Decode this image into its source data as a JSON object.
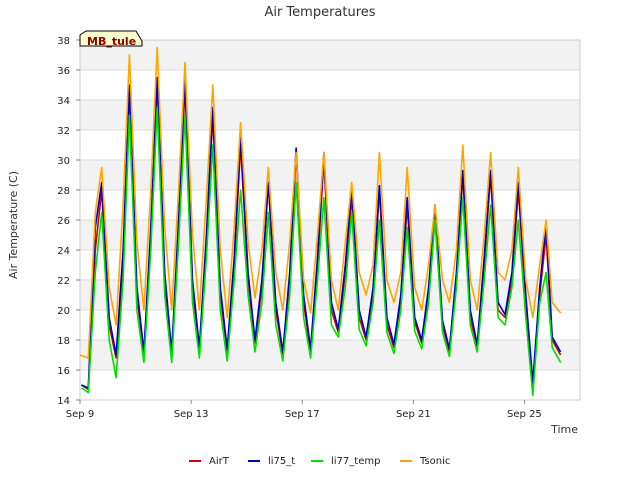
{
  "chart_data": {
    "type": "line",
    "title": "Air Temperatures",
    "xlabel": "Time",
    "ylabel": "Air Temperature (C)",
    "station_tag": "MB_tule",
    "x_unit": "day offset from Sep 9",
    "xlim": [
      0,
      18
    ],
    "ylim": [
      14,
      38
    ],
    "yticks": [
      14,
      16,
      18,
      20,
      22,
      24,
      26,
      28,
      30,
      32,
      34,
      36,
      38
    ],
    "xticks": [
      {
        "label": "Sep 9",
        "x": 0
      },
      {
        "label": "Sep 13",
        "x": 4
      },
      {
        "label": "Sep 17",
        "x": 8
      },
      {
        "label": "Sep 21",
        "x": 12
      },
      {
        "label": "Sep 25",
        "x": 16
      }
    ],
    "background": "alternating grey horizontal bands, light grid",
    "legend_position": "bottom",
    "series": [
      {
        "name": "AirT",
        "color": "#cc0000",
        "x": [
          0.05,
          0.3,
          0.55,
          0.78,
          1.05,
          1.3,
          1.55,
          1.78,
          2.05,
          2.3,
          2.55,
          2.78,
          3.05,
          3.3,
          3.55,
          3.78,
          4.05,
          4.3,
          4.55,
          4.78,
          5.05,
          5.3,
          5.55,
          5.78,
          6.05,
          6.3,
          6.55,
          6.78,
          7.05,
          7.3,
          7.55,
          7.78,
          8.05,
          8.3,
          8.55,
          8.78,
          9.05,
          9.3,
          9.55,
          9.78,
          10.05,
          10.3,
          10.55,
          10.78,
          11.05,
          11.3,
          11.55,
          11.78,
          12.05,
          12.3,
          12.55,
          12.78,
          13.05,
          13.3,
          13.55,
          13.78,
          14.05,
          14.3,
          14.55,
          14.78,
          15.05,
          15.3,
          15.55,
          15.78,
          16.05,
          16.3,
          16.55,
          16.78,
          17.0,
          17.3
        ],
        "y": [
          15.0,
          14.7,
          24.0,
          28.0,
          19.0,
          16.8,
          23.0,
          34.5,
          21.0,
          17.0,
          25.0,
          35.2,
          22.0,
          17.0,
          25.5,
          35.0,
          21.5,
          17.3,
          24.5,
          33.0,
          21.0,
          17.2,
          23.0,
          31.0,
          22.0,
          17.8,
          21.5,
          28.5,
          20.0,
          17.0,
          22.0,
          30.5,
          20.5,
          17.2,
          23.0,
          30.0,
          20.0,
          18.5,
          22.5,
          27.5,
          19.5,
          18.0,
          21.0,
          28.0,
          19.0,
          17.5,
          20.5,
          27.0,
          19.2,
          17.8,
          21.0,
          26.5,
          19.0,
          17.2,
          22.0,
          29.0,
          19.5,
          17.5,
          23.0,
          29.0,
          20.0,
          19.5,
          22.0,
          28.0,
          20.5,
          15.0,
          21.0,
          25.0,
          18.0,
          17.0
        ]
      },
      {
        "name": "li75_t",
        "color": "#0000cc",
        "x": [
          0.05,
          0.3,
          0.55,
          0.78,
          1.05,
          1.3,
          1.55,
          1.78,
          2.05,
          2.3,
          2.55,
          2.78,
          3.05,
          3.3,
          3.55,
          3.78,
          4.05,
          4.3,
          4.55,
          4.78,
          5.05,
          5.3,
          5.55,
          5.78,
          6.05,
          6.3,
          6.55,
          6.78,
          7.05,
          7.3,
          7.55,
          7.78,
          8.05,
          8.3,
          8.55,
          8.78,
          9.05,
          9.3,
          9.55,
          9.78,
          10.05,
          10.3,
          10.55,
          10.78,
          11.05,
          11.3,
          11.55,
          11.78,
          12.05,
          12.3,
          12.55,
          12.78,
          13.05,
          13.3,
          13.55,
          13.78,
          14.05,
          14.3,
          14.55,
          14.78,
          15.05,
          15.3,
          15.55,
          15.78,
          16.05,
          16.3,
          16.55,
          16.78,
          17.0,
          17.3
        ],
        "y": [
          15.0,
          14.8,
          25.5,
          28.5,
          19.5,
          17.0,
          24.0,
          35.0,
          21.5,
          17.2,
          25.5,
          35.5,
          22.5,
          17.2,
          26.0,
          35.5,
          22.0,
          17.5,
          25.0,
          33.5,
          21.5,
          17.4,
          23.5,
          31.5,
          22.5,
          18.0,
          22.0,
          28.5,
          20.5,
          17.2,
          22.5,
          30.8,
          21.0,
          17.4,
          23.5,
          30.5,
          20.5,
          18.7,
          23.0,
          28.2,
          20.0,
          18.2,
          21.5,
          28.3,
          19.5,
          17.7,
          21.0,
          27.5,
          19.5,
          18.0,
          21.5,
          27.0,
          19.3,
          17.4,
          22.5,
          29.3,
          20.0,
          17.7,
          23.5,
          29.3,
          20.5,
          19.7,
          22.5,
          28.5,
          21.0,
          15.2,
          21.5,
          25.8,
          18.2,
          17.2
        ]
      },
      {
        "name": "li77_temp",
        "color": "#00e000",
        "x": [
          0.05,
          0.3,
          0.55,
          0.78,
          1.05,
          1.3,
          1.55,
          1.78,
          2.05,
          2.3,
          2.55,
          2.78,
          3.05,
          3.3,
          3.55,
          3.78,
          4.05,
          4.3,
          4.55,
          4.78,
          5.05,
          5.3,
          5.55,
          5.78,
          6.05,
          6.3,
          6.55,
          6.78,
          7.05,
          7.3,
          7.55,
          7.78,
          8.05,
          8.3,
          8.55,
          8.78,
          9.05,
          9.3,
          9.55,
          9.78,
          10.05,
          10.3,
          10.55,
          10.78,
          11.05,
          11.3,
          11.55,
          11.78,
          12.05,
          12.3,
          12.55,
          12.78,
          13.05,
          13.3,
          13.55,
          13.78,
          14.05,
          14.3,
          14.55,
          14.78,
          15.05,
          15.3,
          15.55,
          15.78,
          16.05,
          16.3,
          16.55,
          16.78,
          17.0,
          17.3
        ],
        "y": [
          14.8,
          14.5,
          22.5,
          26.5,
          18.0,
          15.5,
          22.0,
          33.0,
          20.0,
          16.5,
          24.0,
          33.5,
          21.0,
          16.5,
          24.5,
          33.0,
          20.5,
          16.8,
          23.5,
          31.0,
          20.0,
          16.6,
          22.0,
          28.0,
          21.0,
          17.2,
          20.5,
          26.5,
          19.0,
          16.6,
          21.0,
          28.5,
          19.5,
          16.8,
          22.0,
          27.5,
          19.0,
          18.2,
          21.5,
          26.5,
          18.7,
          17.6,
          20.5,
          26.0,
          18.5,
          17.1,
          20.0,
          25.5,
          18.6,
          17.4,
          20.5,
          26.0,
          18.5,
          16.9,
          21.5,
          27.5,
          19.0,
          17.2,
          22.0,
          27.0,
          19.5,
          19.0,
          21.5,
          26.0,
          19.5,
          14.3,
          20.5,
          22.5,
          17.5,
          16.5
        ]
      },
      {
        "name": "Tsonic",
        "color": "#ffa500",
        "x": [
          0.0,
          0.3,
          0.55,
          0.78,
          1.05,
          1.3,
          1.55,
          1.78,
          2.05,
          2.3,
          2.55,
          2.78,
          3.05,
          3.3,
          3.55,
          3.78,
          4.05,
          4.3,
          4.55,
          4.78,
          5.05,
          5.3,
          5.55,
          5.78,
          6.05,
          6.3,
          6.55,
          6.78,
          7.05,
          7.3,
          7.55,
          7.78,
          8.05,
          8.3,
          8.55,
          8.78,
          9.05,
          9.3,
          9.55,
          9.78,
          10.05,
          10.3,
          10.55,
          10.78,
          11.05,
          11.3,
          11.55,
          11.78,
          12.05,
          12.3,
          12.55,
          12.78,
          13.05,
          13.3,
          13.55,
          13.78,
          14.05,
          14.3,
          14.55,
          14.78,
          15.05,
          15.3,
          15.55,
          15.78,
          16.05,
          16.3,
          16.55,
          16.78,
          17.0,
          17.3
        ],
        "y": [
          17.0,
          16.8,
          26.5,
          29.5,
          21.5,
          19.0,
          27.0,
          37.0,
          24.5,
          20.0,
          28.0,
          37.5,
          25.5,
          20.0,
          28.0,
          36.5,
          25.0,
          20.0,
          27.5,
          35.0,
          24.0,
          19.5,
          25.5,
          32.5,
          24.5,
          20.8,
          24.0,
          29.5,
          22.5,
          20.0,
          24.5,
          30.5,
          22.0,
          19.8,
          25.0,
          30.5,
          22.0,
          20.0,
          24.5,
          28.5,
          22.5,
          21.0,
          23.0,
          30.5,
          22.0,
          20.5,
          22.5,
          29.5,
          21.5,
          20.0,
          23.0,
          27.0,
          22.0,
          20.5,
          24.0,
          31.0,
          22.0,
          20.0,
          25.0,
          30.5,
          22.5,
          22.0,
          24.0,
          29.5,
          22.0,
          19.5,
          23.0,
          26.0,
          20.5,
          19.8
        ]
      }
    ]
  }
}
